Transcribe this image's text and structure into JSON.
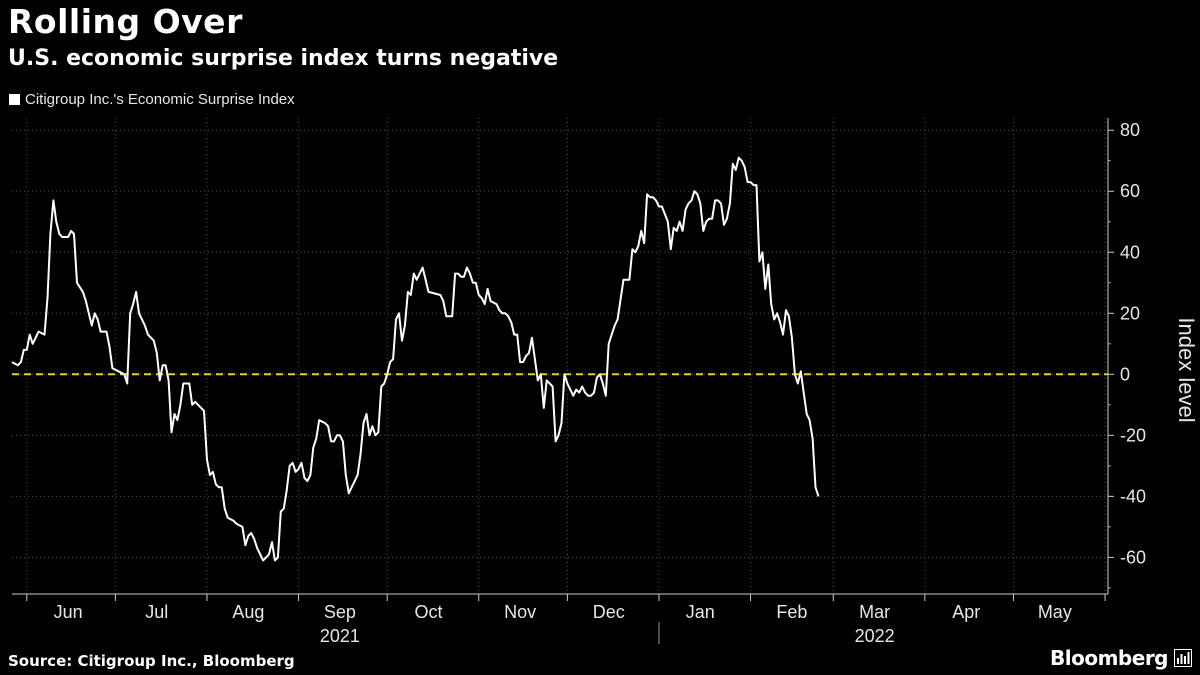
{
  "header": {
    "title": "Rolling Over",
    "subtitle": "U.S. economic surprise index turns negative"
  },
  "footer": {
    "source": "Source: Citigroup Inc., Bloomberg",
    "brand": "Bloomberg"
  },
  "colors": {
    "background": "#000000",
    "line": "#ffffff",
    "zero_line": "#e6d700",
    "grid": "#4d4d4d"
  },
  "chart_data": {
    "type": "line",
    "title": "Rolling Over",
    "subtitle": "U.S. economic surprise index turns negative",
    "ylabel": "Index level",
    "xlabel": "",
    "ylim": [
      -72,
      84
    ],
    "yticks": [
      80,
      60,
      40,
      20,
      0,
      -20,
      -40,
      -60
    ],
    "x_range": [
      "2021-05-27",
      "2022-06-02"
    ],
    "grid": true,
    "legend": "top-left",
    "reference_line": {
      "y": 0,
      "style": "dashed",
      "color": "#e6d700"
    },
    "months": [
      {
        "label": "Jun",
        "date": "2021-06-15"
      },
      {
        "label": "Jul",
        "date": "2021-07-15"
      },
      {
        "label": "Aug",
        "date": "2021-08-15"
      },
      {
        "label": "Sep",
        "date": "2021-09-15"
      },
      {
        "label": "Oct",
        "date": "2021-10-15"
      },
      {
        "label": "Nov",
        "date": "2021-11-15"
      },
      {
        "label": "Dec",
        "date": "2021-12-15"
      },
      {
        "label": "Jan",
        "date": "2022-01-15"
      },
      {
        "label": "Feb",
        "date": "2022-02-15"
      },
      {
        "label": "Mar",
        "date": "2022-03-15"
      },
      {
        "label": "Apr",
        "date": "2022-04-15"
      },
      {
        "label": "May",
        "date": "2022-05-15"
      }
    ],
    "month_starts": [
      "2021-06-01",
      "2021-07-01",
      "2021-08-01",
      "2021-09-01",
      "2021-10-01",
      "2021-11-01",
      "2021-12-01",
      "2022-01-01",
      "2022-02-01",
      "2022-03-01",
      "2022-04-01",
      "2022-05-01",
      "2022-06-01"
    ],
    "years": [
      {
        "label": "2021",
        "date": "2021-09-15"
      },
      {
        "label": "2022",
        "date": "2022-03-15"
      }
    ],
    "year_divider": "2022-01-01",
    "series": [
      {
        "name": "Citigroup Inc.'s Economic Surprise Index",
        "points": [
          [
            "2021-05-27",
            4
          ],
          [
            "2021-05-29",
            3
          ],
          [
            "2021-05-30",
            4
          ],
          [
            "2021-05-31",
            8
          ],
          [
            "2021-06-01",
            8
          ],
          [
            "2021-06-02",
            13
          ],
          [
            "2021-06-03",
            10
          ],
          [
            "2021-06-05",
            14
          ],
          [
            "2021-06-07",
            13
          ],
          [
            "2021-06-08",
            25
          ],
          [
            "2021-06-09",
            46
          ],
          [
            "2021-06-10",
            57
          ],
          [
            "2021-06-11",
            50
          ],
          [
            "2021-06-12",
            46
          ],
          [
            "2021-06-13",
            45
          ],
          [
            "2021-06-15",
            45
          ],
          [
            "2021-06-16",
            47
          ],
          [
            "2021-06-17",
            46
          ],
          [
            "2021-06-18",
            30
          ],
          [
            "2021-06-20",
            27
          ],
          [
            "2021-06-21",
            24
          ],
          [
            "2021-06-22",
            20
          ],
          [
            "2021-06-23",
            16
          ],
          [
            "2021-06-24",
            20
          ],
          [
            "2021-06-25",
            18
          ],
          [
            "2021-06-26",
            14
          ],
          [
            "2021-06-28",
            14
          ],
          [
            "2021-06-29",
            9
          ],
          [
            "2021-06-30",
            2
          ],
          [
            "2021-07-02",
            1
          ],
          [
            "2021-07-04",
            0
          ],
          [
            "2021-07-05",
            -3
          ],
          [
            "2021-07-06",
            20
          ],
          [
            "2021-07-07",
            23
          ],
          [
            "2021-07-08",
            27
          ],
          [
            "2021-07-09",
            20
          ],
          [
            "2021-07-11",
            16
          ],
          [
            "2021-07-12",
            13
          ],
          [
            "2021-07-14",
            11
          ],
          [
            "2021-07-15",
            7
          ],
          [
            "2021-07-16",
            -2
          ],
          [
            "2021-07-17",
            3
          ],
          [
            "2021-07-18",
            3
          ],
          [
            "2021-07-19",
            -2
          ],
          [
            "2021-07-20",
            -19
          ],
          [
            "2021-07-21",
            -13
          ],
          [
            "2021-07-22",
            -15
          ],
          [
            "2021-07-23",
            -10
          ],
          [
            "2021-07-24",
            -3
          ],
          [
            "2021-07-26",
            -3
          ],
          [
            "2021-07-27",
            -10
          ],
          [
            "2021-07-28",
            -9
          ],
          [
            "2021-07-30",
            -11
          ],
          [
            "2021-07-31",
            -12
          ],
          [
            "2021-08-01",
            -28
          ],
          [
            "2021-08-02",
            -33
          ],
          [
            "2021-08-03",
            -32
          ],
          [
            "2021-08-04",
            -36
          ],
          [
            "2021-08-05",
            -37
          ],
          [
            "2021-08-06",
            -37
          ],
          [
            "2021-08-07",
            -44
          ],
          [
            "2021-08-08",
            -47
          ],
          [
            "2021-08-10",
            -48
          ],
          [
            "2021-08-11",
            -49
          ],
          [
            "2021-08-13",
            -50
          ],
          [
            "2021-08-14",
            -56
          ],
          [
            "2021-08-15",
            -53
          ],
          [
            "2021-08-16",
            -52
          ],
          [
            "2021-08-17",
            -54
          ],
          [
            "2021-08-18",
            -57
          ],
          [
            "2021-08-19",
            -59
          ],
          [
            "2021-08-20",
            -61
          ],
          [
            "2021-08-21",
            -60
          ],
          [
            "2021-08-22",
            -59
          ],
          [
            "2021-08-23",
            -55
          ],
          [
            "2021-08-24",
            -61
          ],
          [
            "2021-08-25",
            -60
          ],
          [
            "2021-08-26",
            -45
          ],
          [
            "2021-08-27",
            -44
          ],
          [
            "2021-08-28",
            -38
          ],
          [
            "2021-08-29",
            -30
          ],
          [
            "2021-08-30",
            -29
          ],
          [
            "2021-08-31",
            -32
          ],
          [
            "2021-09-01",
            -31
          ],
          [
            "2021-09-02",
            -29
          ],
          [
            "2021-09-03",
            -34
          ],
          [
            "2021-09-04",
            -35
          ],
          [
            "2021-09-05",
            -33
          ],
          [
            "2021-09-06",
            -24
          ],
          [
            "2021-09-07",
            -21
          ],
          [
            "2021-09-08",
            -15
          ],
          [
            "2021-09-10",
            -16
          ],
          [
            "2021-09-11",
            -17
          ],
          [
            "2021-09-12",
            -22
          ],
          [
            "2021-09-13",
            -22
          ],
          [
            "2021-09-14",
            -20
          ],
          [
            "2021-09-15",
            -20
          ],
          [
            "2021-09-16",
            -22
          ],
          [
            "2021-09-17",
            -33
          ],
          [
            "2021-09-18",
            -39
          ],
          [
            "2021-09-19",
            -37
          ],
          [
            "2021-09-20",
            -35
          ],
          [
            "2021-09-21",
            -33
          ],
          [
            "2021-09-22",
            -26
          ],
          [
            "2021-09-23",
            -16
          ],
          [
            "2021-09-24",
            -13
          ],
          [
            "2021-09-25",
            -20
          ],
          [
            "2021-09-26",
            -17
          ],
          [
            "2021-09-27",
            -20
          ],
          [
            "2021-09-28",
            -19
          ],
          [
            "2021-09-29",
            -4
          ],
          [
            "2021-09-30",
            -3
          ],
          [
            "2021-10-01",
            0
          ],
          [
            "2021-10-02",
            4
          ],
          [
            "2021-10-03",
            5
          ],
          [
            "2021-10-04",
            18
          ],
          [
            "2021-10-05",
            20
          ],
          [
            "2021-10-06",
            11
          ],
          [
            "2021-10-07",
            16
          ],
          [
            "2021-10-08",
            27
          ],
          [
            "2021-10-09",
            26
          ],
          [
            "2021-10-10",
            33
          ],
          [
            "2021-10-11",
            31
          ],
          [
            "2021-10-13",
            35
          ],
          [
            "2021-10-14",
            31
          ],
          [
            "2021-10-15",
            27
          ],
          [
            "2021-10-19",
            26
          ],
          [
            "2021-10-20",
            24
          ],
          [
            "2021-10-21",
            19
          ],
          [
            "2021-10-23",
            19
          ],
          [
            "2021-10-24",
            33
          ],
          [
            "2021-10-25",
            33
          ],
          [
            "2021-10-26",
            32
          ],
          [
            "2021-10-27",
            32
          ],
          [
            "2021-10-28",
            35
          ],
          [
            "2021-10-29",
            33
          ],
          [
            "2021-10-30",
            30
          ],
          [
            "2021-10-31",
            30
          ],
          [
            "2021-11-01",
            26
          ],
          [
            "2021-11-02",
            25
          ],
          [
            "2021-11-03",
            23
          ],
          [
            "2021-11-04",
            28
          ],
          [
            "2021-11-05",
            24
          ],
          [
            "2021-11-07",
            23
          ],
          [
            "2021-11-08",
            21
          ],
          [
            "2021-11-09",
            20
          ],
          [
            "2021-11-10",
            20
          ],
          [
            "2021-11-11",
            19
          ],
          [
            "2021-11-12",
            17
          ],
          [
            "2021-11-13",
            13
          ],
          [
            "2021-11-14",
            13
          ],
          [
            "2021-11-15",
            4
          ],
          [
            "2021-11-16",
            4
          ],
          [
            "2021-11-17",
            6
          ],
          [
            "2021-11-18",
            7
          ],
          [
            "2021-11-19",
            12
          ],
          [
            "2021-11-20",
            5
          ],
          [
            "2021-11-21",
            -2
          ],
          [
            "2021-11-22",
            0
          ],
          [
            "2021-11-23",
            -11
          ],
          [
            "2021-11-24",
            -2
          ],
          [
            "2021-11-25",
            -3
          ],
          [
            "2021-11-26",
            -4
          ],
          [
            "2021-11-27",
            -22
          ],
          [
            "2021-11-28",
            -20
          ],
          [
            "2021-11-29",
            -16
          ],
          [
            "2021-11-30",
            0
          ],
          [
            "2021-12-01",
            -3
          ],
          [
            "2021-12-02",
            -5
          ],
          [
            "2021-12-03",
            -7
          ],
          [
            "2021-12-04",
            -5
          ],
          [
            "2021-12-05",
            -6
          ],
          [
            "2021-12-06",
            -4
          ],
          [
            "2021-12-07",
            -6
          ],
          [
            "2021-12-08",
            -7
          ],
          [
            "2021-12-09",
            -7
          ],
          [
            "2021-12-10",
            -6
          ],
          [
            "2021-12-11",
            -1
          ],
          [
            "2021-12-12",
            0
          ],
          [
            "2021-12-13",
            -3
          ],
          [
            "2021-12-14",
            -7
          ],
          [
            "2021-12-15",
            10
          ],
          [
            "2021-12-16",
            13
          ],
          [
            "2021-12-17",
            16
          ],
          [
            "2021-12-18",
            18
          ],
          [
            "2021-12-20",
            31
          ],
          [
            "2021-12-22",
            31
          ],
          [
            "2021-12-23",
            41
          ],
          [
            "2021-12-24",
            40
          ],
          [
            "2021-12-25",
            42
          ],
          [
            "2021-12-26",
            47
          ],
          [
            "2021-12-27",
            43
          ],
          [
            "2021-12-28",
            59
          ],
          [
            "2021-12-29",
            58
          ],
          [
            "2021-12-30",
            58
          ],
          [
            "2021-12-31",
            57
          ],
          [
            "2022-01-01",
            55
          ],
          [
            "2022-01-02",
            55
          ],
          [
            "2022-01-04",
            50
          ],
          [
            "2022-01-05",
            41
          ],
          [
            "2022-01-06",
            48
          ],
          [
            "2022-01-07",
            47
          ],
          [
            "2022-01-08",
            50
          ],
          [
            "2022-01-09",
            47
          ],
          [
            "2022-01-10",
            54
          ],
          [
            "2022-01-11",
            56
          ],
          [
            "2022-01-12",
            57
          ],
          [
            "2022-01-13",
            60
          ],
          [
            "2022-01-14",
            59
          ],
          [
            "2022-01-15",
            56
          ],
          [
            "2022-01-16",
            47
          ],
          [
            "2022-01-17",
            50
          ],
          [
            "2022-01-18",
            51
          ],
          [
            "2022-01-19",
            51
          ],
          [
            "2022-01-20",
            57
          ],
          [
            "2022-01-21",
            57
          ],
          [
            "2022-01-22",
            56
          ],
          [
            "2022-01-23",
            49
          ],
          [
            "2022-01-24",
            51
          ],
          [
            "2022-01-25",
            56
          ],
          [
            "2022-01-26",
            69
          ],
          [
            "2022-01-27",
            67
          ],
          [
            "2022-01-28",
            71
          ],
          [
            "2022-01-29",
            70
          ],
          [
            "2022-01-30",
            68
          ],
          [
            "2022-01-31",
            63
          ],
          [
            "2022-02-01",
            63
          ],
          [
            "2022-02-02",
            62
          ],
          [
            "2022-02-03",
            62
          ],
          [
            "2022-02-04",
            37
          ],
          [
            "2022-02-05",
            40
          ],
          [
            "2022-02-06",
            28
          ],
          [
            "2022-02-07",
            36
          ],
          [
            "2022-02-08",
            23
          ],
          [
            "2022-02-09",
            18
          ],
          [
            "2022-02-10",
            20
          ],
          [
            "2022-02-11",
            17
          ],
          [
            "2022-02-12",
            13
          ],
          [
            "2022-02-13",
            21
          ],
          [
            "2022-02-14",
            19
          ],
          [
            "2022-02-15",
            12
          ],
          [
            "2022-02-16",
            0
          ],
          [
            "2022-02-17",
            -3
          ],
          [
            "2022-02-18",
            1
          ],
          [
            "2022-02-19",
            -6
          ],
          [
            "2022-02-20",
            -13
          ],
          [
            "2022-02-21",
            -15
          ],
          [
            "2022-02-22",
            -21
          ],
          [
            "2022-02-23",
            -37
          ],
          [
            "2022-02-24",
            -40
          ]
        ]
      }
    ]
  }
}
